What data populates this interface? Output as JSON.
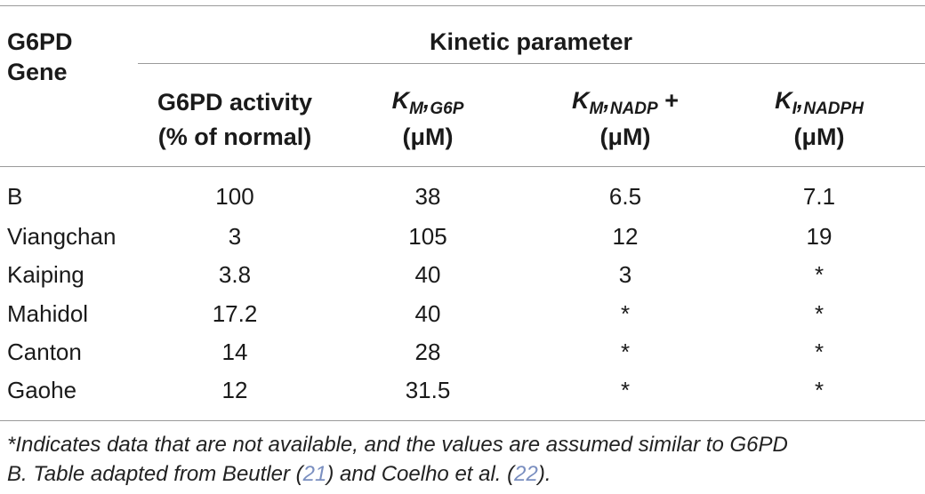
{
  "table": {
    "header": {
      "gene_line1": "G6PD",
      "gene_line2": "Gene",
      "group_label": "Kinetic parameter",
      "columns": [
        {
          "line1": "G6PD activity",
          "line2": "(% of normal)"
        },
        {
          "symbol": "K",
          "subscript": "M",
          "sep": ",",
          "subscript2": "G6P",
          "line2": "(μM)"
        },
        {
          "symbol": "K",
          "subscript": "M",
          "sep": ",",
          "subscript2": "NADP",
          "suffix": " +",
          "line2": "(μM)"
        },
        {
          "symbol": "K",
          "subscript": "I",
          "sep": ",",
          "subscript2": "NADPH",
          "line2": "(μM)"
        }
      ]
    },
    "rows": [
      {
        "gene": "B",
        "activity": "100",
        "km_g6p": "38",
        "km_nadp": "6.5",
        "ki_nadph": "7.1"
      },
      {
        "gene": "Viangchan",
        "activity": "3",
        "km_g6p": "105",
        "km_nadp": "12",
        "ki_nadph": "19"
      },
      {
        "gene": "Kaiping",
        "activity": "3.8",
        "km_g6p": "40",
        "km_nadp": "3",
        "ki_nadph": "*"
      },
      {
        "gene": "Mahidol",
        "activity": "17.2",
        "km_g6p": "40",
        "km_nadp": "*",
        "ki_nadph": "*"
      },
      {
        "gene": "Canton",
        "activity": "14",
        "km_g6p": "28",
        "km_nadp": "*",
        "ki_nadph": "*"
      },
      {
        "gene": "Gaohe",
        "activity": "12",
        "km_g6p": "31.5",
        "km_nadp": "*",
        "ki_nadph": "*"
      }
    ]
  },
  "footnote": {
    "part1": "*Indicates data that are not available, and the values are assumed similar to G6PD",
    "part2": "B. Table adapted from Beutler (",
    "ref1": "21",
    "part3": ") and Coelho et al. (",
    "ref2": "22",
    "part4": ")."
  }
}
